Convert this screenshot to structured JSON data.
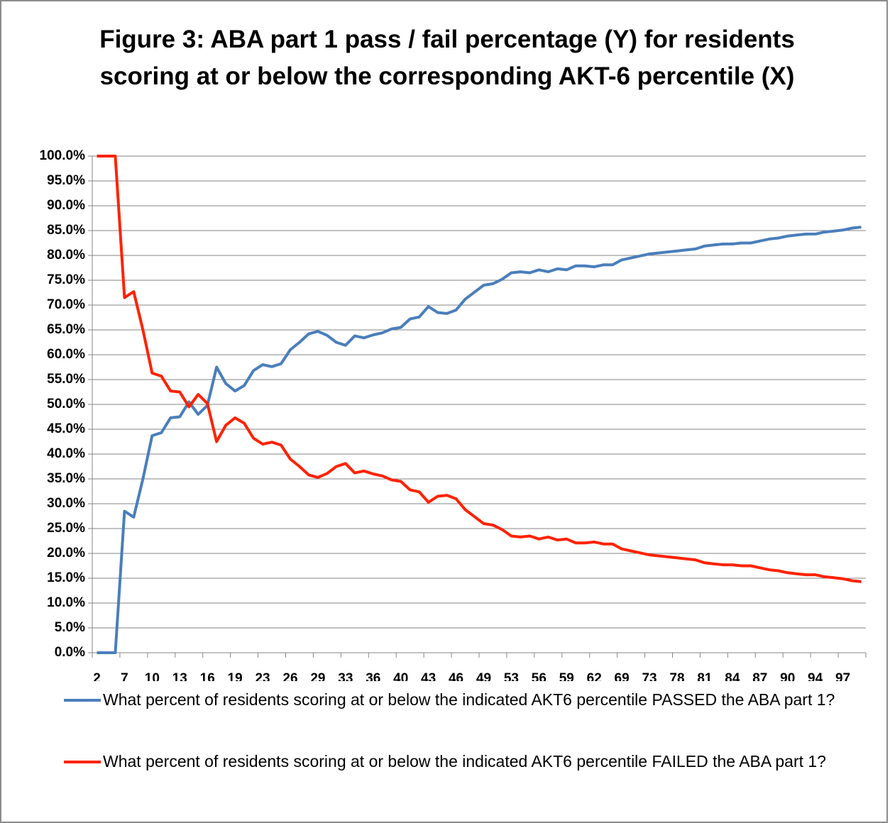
{
  "chart_data": {
    "type": "line",
    "title": "Figure 3: ABA part 1 pass / fail percentage (Y) for residents scoring at or below the corresponding AKT-6 percentile (X)",
    "categories": [
      "2",
      null,
      null,
      "7",
      null,
      null,
      "10",
      null,
      null,
      "13",
      null,
      null,
      "16",
      null,
      null,
      "19",
      null,
      null,
      "23",
      null,
      null,
      "26",
      null,
      null,
      "29",
      null,
      null,
      "33",
      null,
      null,
      "36",
      null,
      null,
      "40",
      null,
      null,
      "43",
      null,
      null,
      "46",
      null,
      null,
      "49",
      null,
      null,
      "53",
      null,
      null,
      "56",
      null,
      null,
      "59",
      null,
      null,
      "62",
      null,
      null,
      "69",
      null,
      null,
      "73",
      null,
      null,
      "78",
      null,
      null,
      "81",
      null,
      null,
      "84",
      null,
      null,
      "87",
      null,
      null,
      "90",
      null,
      null,
      "94",
      null,
      null,
      "97",
      null,
      null
    ],
    "series": [
      {
        "name": "What percent of residents scoring at or below the indicated AKT6 percentile PASSED the ABA part 1?",
        "color": "#4a7ebb",
        "values": [
          0,
          0,
          0,
          28.5,
          27.3,
          35,
          43.7,
          44.3,
          47.3,
          47.5,
          50.5,
          48,
          49.8,
          57.5,
          54.2,
          52.7,
          53.8,
          56.8,
          58,
          57.6,
          58.2,
          61,
          62.5,
          64.2,
          64.7,
          63.9,
          62.5,
          61.9,
          63.8,
          63.4,
          64,
          64.4,
          65.2,
          65.5,
          67.2,
          67.6,
          69.7,
          68.5,
          68.3,
          69,
          71.2,
          72.6,
          74,
          74.3,
          75.2,
          76.5,
          76.7,
          76.5,
          77.1,
          76.7,
          77.3,
          77.1,
          77.9,
          77.9,
          77.7,
          78.1,
          78.1,
          79.1,
          79.5,
          79.9,
          80.3,
          80.5,
          80.7,
          80.9,
          81.1,
          81.3,
          81.9,
          82.1,
          82.3,
          82.3,
          82.5,
          82.5,
          82.9,
          83.3,
          83.5,
          83.9,
          84.1,
          84.3,
          84.3,
          84.7,
          84.9,
          85.1,
          85.5,
          85.7
        ]
      },
      {
        "name": "What percent of residents scoring at or below the indicated AKT6 percentile FAILED the ABA part 1?",
        "color": "#ff2200",
        "values": [
          100,
          100,
          100,
          71.5,
          72.7,
          65,
          56.3,
          55.7,
          52.7,
          52.5,
          49.5,
          52,
          50.2,
          42.5,
          45.8,
          47.3,
          46.2,
          43.2,
          42,
          42.4,
          41.8,
          39,
          37.5,
          35.8,
          35.3,
          36.1,
          37.5,
          38.1,
          36.2,
          36.6,
          36,
          35.6,
          34.8,
          34.5,
          32.8,
          32.4,
          30.3,
          31.5,
          31.7,
          31,
          28.8,
          27.4,
          26,
          25.7,
          24.8,
          23.5,
          23.3,
          23.5,
          22.9,
          23.3,
          22.7,
          22.9,
          22.1,
          22.1,
          22.3,
          21.9,
          21.9,
          20.9,
          20.5,
          20.1,
          19.7,
          19.5,
          19.3,
          19.1,
          18.9,
          18.7,
          18.1,
          17.9,
          17.7,
          17.7,
          17.5,
          17.5,
          17.1,
          16.7,
          16.5,
          16.1,
          15.9,
          15.7,
          15.7,
          15.3,
          15.1,
          14.9,
          14.5,
          14.3
        ]
      }
    ],
    "ylim": [
      0,
      100
    ],
    "yticks": [
      {
        "value": 0,
        "label": "0.0%"
      },
      {
        "value": 5,
        "label": "5.0%"
      },
      {
        "value": 10,
        "label": "10.0%"
      },
      {
        "value": 15,
        "label": "15.0%"
      },
      {
        "value": 20,
        "label": "20.0%"
      },
      {
        "value": 25,
        "label": "25.0%"
      },
      {
        "value": 30,
        "label": "30.0%"
      },
      {
        "value": 35,
        "label": "35.0%"
      },
      {
        "value": 40,
        "label": "40.0%"
      },
      {
        "value": 45,
        "label": "45.0%"
      },
      {
        "value": 50,
        "label": "50.0%"
      },
      {
        "value": 55,
        "label": "55.0%"
      },
      {
        "value": 60,
        "label": "60.0%"
      },
      {
        "value": 65,
        "label": "65.0%"
      },
      {
        "value": 70,
        "label": "70.0%"
      },
      {
        "value": 75,
        "label": "75.0%"
      },
      {
        "value": 80,
        "label": "80.0%"
      },
      {
        "value": 85,
        "label": "85.0%"
      },
      {
        "value": 90,
        "label": "90.0%"
      },
      {
        "value": 95,
        "label": "95.0%"
      },
      {
        "value": 100,
        "label": "100.0%"
      }
    ],
    "grid": true,
    "legend": "bottom"
  }
}
